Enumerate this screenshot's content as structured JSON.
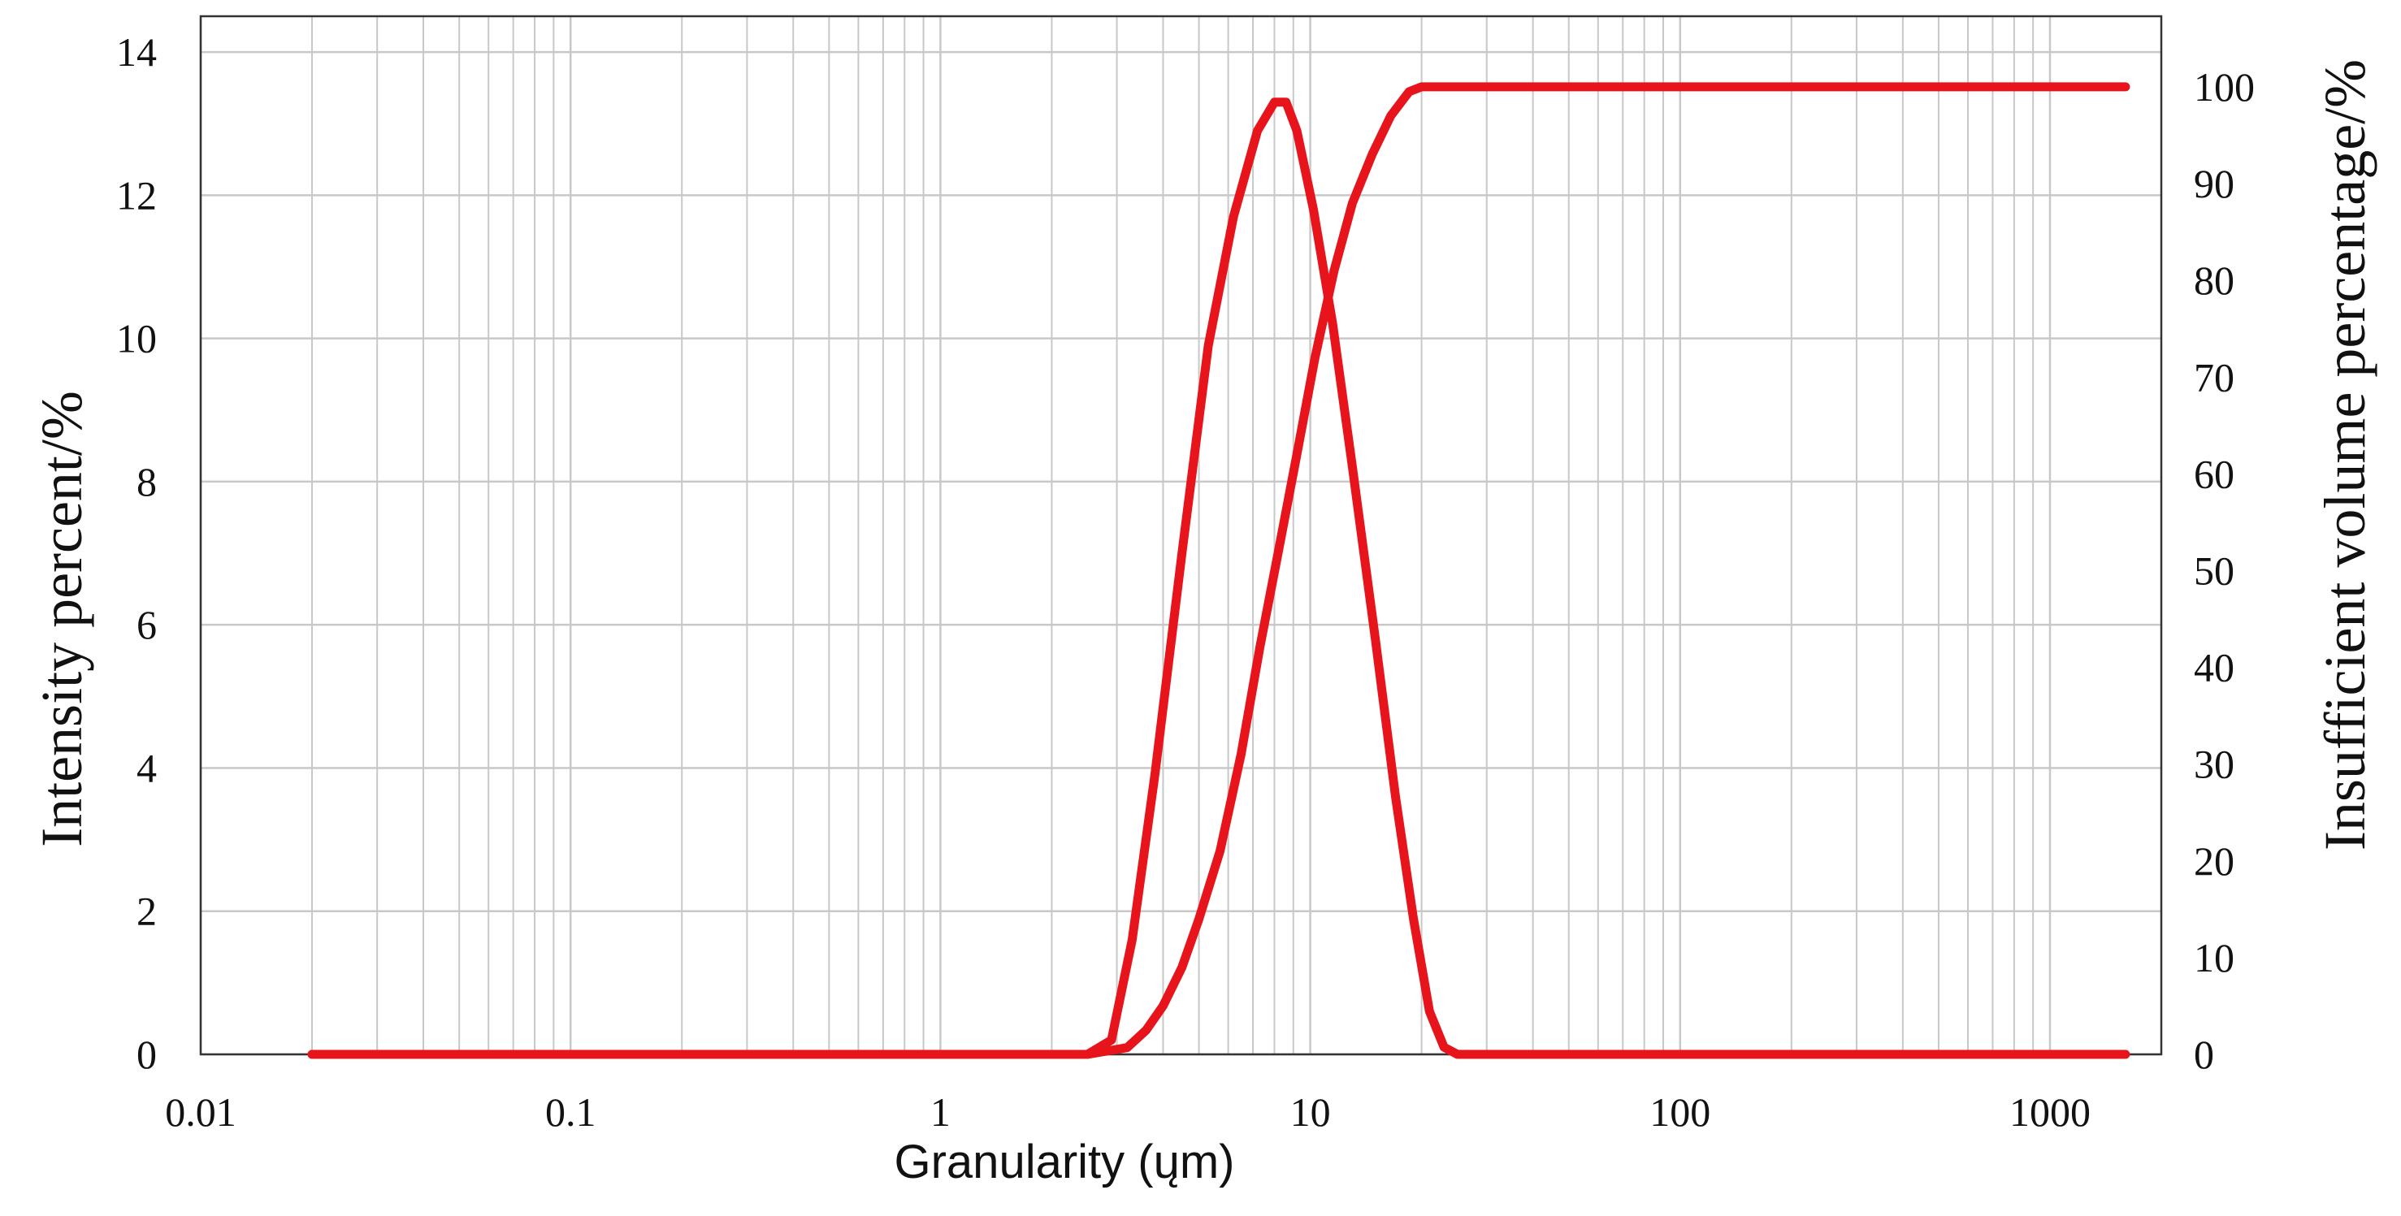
{
  "chart_data": {
    "type": "line",
    "title": "",
    "xlabel": "Granularity (ųm)",
    "ylabel_left": "Intensity percent/%",
    "ylabel_right": "Insufficient volume percentage/%",
    "x_scale": "log",
    "xlim": [
      0.01,
      2000
    ],
    "ylim_left": [
      0,
      14.5
    ],
    "ylim_right": [
      0,
      107.3
    ],
    "x_ticks": [
      "0.01",
      "0.1",
      "1",
      "10",
      "100",
      "1000"
    ],
    "y_left_ticks": [
      "0",
      "2",
      "4",
      "6",
      "8",
      "10",
      "12",
      "14"
    ],
    "y_right_ticks": [
      "0",
      "10",
      "20",
      "30",
      "40",
      "50",
      "60",
      "70",
      "80",
      "90",
      "100"
    ],
    "grid": true,
    "line_color": "#e8141b",
    "grid_color": "#c8c8c8",
    "series": [
      {
        "axis": "left",
        "x": [
          0.02,
          0.1,
          1,
          2.5,
          2.9,
          3.3,
          3.8,
          4.5,
          5.3,
          6.2,
          7.2,
          8.0,
          8.6,
          9.2,
          10.2,
          11.5,
          13,
          15,
          17,
          19,
          21,
          23,
          25,
          100,
          1000,
          1600
        ],
        "y": [
          0,
          0,
          0,
          0,
          0.2,
          1.6,
          3.9,
          7.0,
          9.9,
          11.7,
          12.9,
          13.3,
          13.3,
          12.9,
          11.8,
          10.2,
          8.2,
          5.8,
          3.6,
          1.9,
          0.6,
          0.1,
          0,
          0,
          0,
          0
        ]
      },
      {
        "axis": "right",
        "x": [
          0.02,
          0.1,
          1,
          2.5,
          3.2,
          3.6,
          4.0,
          4.5,
          5.0,
          5.7,
          6.5,
          7.3,
          8.2,
          9.2,
          10.3,
          11.6,
          13,
          14.7,
          16.5,
          18.5,
          20,
          22,
          50,
          100,
          1000,
          1600
        ],
        "y": [
          0,
          0,
          0,
          0,
          0.7,
          2.5,
          5,
          9,
          14,
          21,
          31,
          42,
          52,
          62,
          72,
          81,
          88,
          93,
          97,
          99.5,
          100,
          100,
          100,
          100,
          100,
          100
        ]
      }
    ]
  }
}
